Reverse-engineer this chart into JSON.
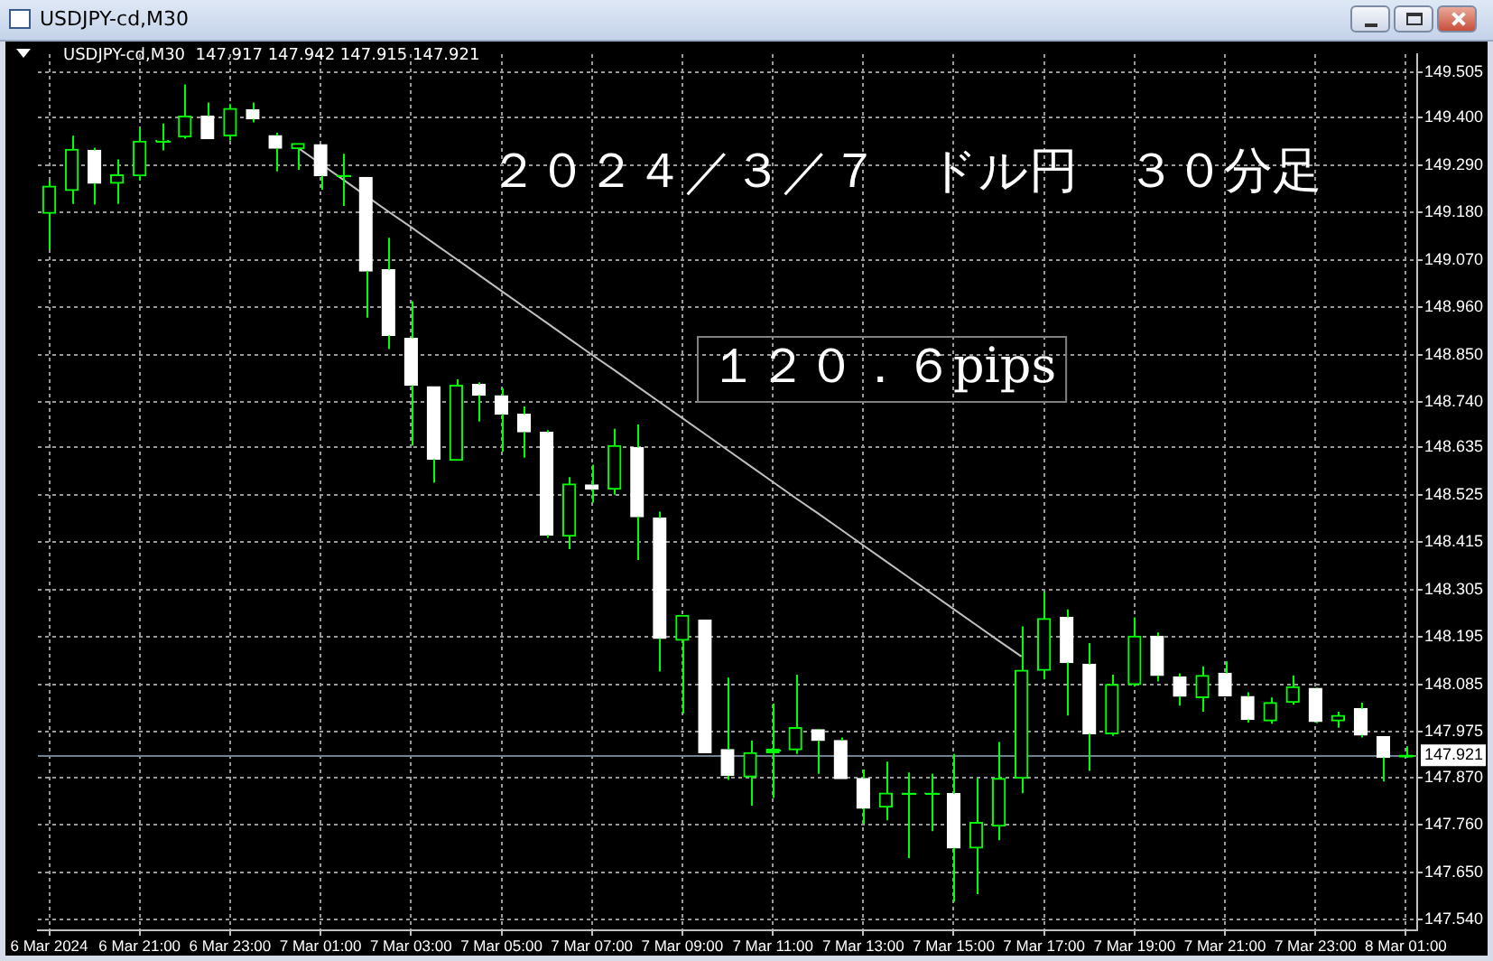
{
  "chart_data": {
    "type": "candlestick",
    "title": "USDJPY-cd,M30",
    "subtitle": "USDJPY-cd,M30  147.917 147.942 147.915 147.921",
    "colors": [
      "#00ff00",
      "#00ff00",
      "#ffffff",
      "#00ff00",
      "#00ff00",
      "#00ff00",
      "#00ff00",
      "#ffffff",
      "#00ff00",
      "#ffffff",
      "#ffffff",
      "#00ff00",
      "#ffffff",
      "#00ff00",
      "#ffffff",
      "#ffffff",
      "#ffffff",
      "#ffffff",
      "#00ff00",
      "#ffffff",
      "#ffffff",
      "#ffffff",
      "#ffffff",
      "#00ff00",
      "#ffffff",
      "#00ff00",
      "#ffffff",
      "#ffffff",
      "#00ff00",
      "#ffffff",
      "#ffffff",
      "#00ff00",
      "#00ff00",
      "#00ff00",
      "#ffffff",
      "#ffffff",
      "#ffffff",
      "#00ff00",
      "#00ff00",
      "#00ff00",
      "#ffffff",
      "#00ff00",
      "#00ff00",
      "#00ff00",
      "#00ff00",
      "#ffffff",
      "#ffffff",
      "#00ff00",
      "#00ff00",
      "#ffffff",
      "#ffffff",
      "#00ff00",
      "#ffffff",
      "#ffffff",
      "#00ff00",
      "#00ff00",
      "#ffffff",
      "#00ff00",
      "#ffffff",
      "#ffffff",
      "#00ff00"
    ],
    "categories": [
      "6 Mar 2024",
      null,
      null,
      null,
      "6 Mar 21:00",
      null,
      null,
      null,
      "6 Mar 23:00",
      null,
      null,
      null,
      "7 Mar 01:00",
      null,
      null,
      null,
      "7 Mar 03:00",
      null,
      null,
      null,
      "7 Mar 05:00",
      null,
      null,
      null,
      "7 Mar 07:00",
      null,
      null,
      null,
      "7 Mar 09:00",
      null,
      null,
      null,
      "7 Mar 11:00",
      null,
      null,
      null,
      "7 Mar 13:00",
      null,
      null,
      null,
      "7 Mar 15:00",
      null,
      null,
      null,
      "7 Mar 17:00",
      null,
      null,
      null,
      "7 Mar 19:00",
      null,
      null,
      null,
      "7 Mar 21:00",
      null,
      null,
      null,
      "7 Mar 23:00",
      null,
      null,
      null,
      "8 Mar 01:00"
    ],
    "ohlc": [
      [
        149.178,
        149.254,
        149.094,
        149.241
      ],
      [
        149.231,
        149.358,
        149.2,
        149.326
      ],
      [
        149.324,
        149.33,
        149.198,
        149.248
      ],
      [
        149.248,
        149.303,
        149.2,
        149.267
      ],
      [
        149.265,
        149.376,
        149.254,
        149.345
      ],
      [
        149.345,
        149.386,
        149.324,
        149.347
      ],
      [
        149.355,
        149.477,
        149.351,
        149.403
      ],
      [
        149.403,
        149.435,
        149.351,
        149.351
      ],
      [
        149.358,
        149.431,
        149.347,
        149.421
      ],
      [
        149.418,
        149.435,
        149.389,
        149.397
      ],
      [
        149.358,
        149.365,
        149.275,
        149.329
      ],
      [
        149.328,
        149.34,
        149.279,
        149.34
      ],
      [
        149.337,
        149.337,
        149.233,
        149.265
      ],
      [
        149.265,
        149.316,
        149.195,
        149.266
      ],
      [
        149.261,
        149.261,
        148.936,
        149.044
      ],
      [
        149.047,
        149.121,
        148.863,
        148.895
      ],
      [
        148.888,
        148.974,
        148.639,
        148.779
      ],
      [
        148.776,
        148.776,
        148.553,
        148.608
      ],
      [
        148.605,
        148.793,
        148.605,
        148.779
      ],
      [
        148.781,
        148.786,
        148.695,
        148.756
      ],
      [
        148.755,
        148.772,
        148.625,
        148.712
      ],
      [
        148.712,
        148.73,
        148.611,
        148.671
      ],
      [
        148.67,
        148.675,
        148.425,
        148.432
      ],
      [
        148.429,
        148.566,
        148.399,
        148.55
      ],
      [
        148.548,
        148.595,
        148.507,
        148.538
      ],
      [
        148.538,
        148.678,
        148.525,
        148.639
      ],
      [
        148.635,
        148.688,
        148.374,
        148.474
      ],
      [
        148.471,
        148.486,
        148.115,
        148.192
      ],
      [
        148.188,
        148.245,
        148.018,
        148.245
      ],
      [
        148.234,
        148.234,
        147.927,
        147.927
      ],
      [
        147.934,
        148.101,
        147.864,
        147.874
      ],
      [
        147.871,
        147.955,
        147.804,
        147.927
      ],
      [
        147.927,
        148.041,
        147.822,
        147.935
      ],
      [
        147.934,
        148.108,
        147.924,
        147.985
      ],
      [
        147.98,
        147.982,
        147.878,
        147.955
      ],
      [
        147.955,
        147.962,
        147.867,
        147.867
      ],
      [
        147.867,
        147.888,
        147.762,
        147.798
      ],
      [
        147.801,
        147.906,
        147.77,
        147.833
      ],
      [
        147.832,
        147.881,
        147.682,
        147.833
      ],
      [
        147.832,
        147.878,
        147.745,
        147.833
      ],
      [
        147.832,
        147.924,
        147.581,
        147.706
      ],
      [
        147.706,
        147.867,
        147.599,
        147.765
      ],
      [
        147.757,
        147.952,
        147.724,
        147.867
      ],
      [
        147.868,
        148.22,
        147.833,
        148.118
      ],
      [
        148.118,
        148.3,
        148.097,
        148.238
      ],
      [
        148.241,
        148.259,
        148.013,
        148.136
      ],
      [
        148.132,
        148.181,
        147.885,
        147.971
      ],
      [
        147.971,
        148.108,
        147.966,
        148.085
      ],
      [
        148.085,
        148.241,
        148.08,
        148.197
      ],
      [
        148.197,
        148.206,
        148.092,
        148.106
      ],
      [
        148.103,
        148.111,
        148.036,
        148.058
      ],
      [
        148.055,
        148.127,
        148.022,
        148.106
      ],
      [
        148.111,
        148.139,
        148.059,
        148.059
      ],
      [
        148.057,
        148.067,
        147.997,
        148.004
      ],
      [
        148.001,
        148.055,
        147.994,
        148.043
      ],
      [
        148.044,
        148.106,
        148.038,
        148.08
      ],
      [
        148.076,
        148.078,
        147.995,
        147.999
      ],
      [
        148.001,
        148.022,
        147.985,
        148.013
      ],
      [
        148.029,
        148.043,
        147.962,
        147.968
      ],
      [
        147.964,
        147.964,
        147.86,
        147.916
      ],
      [
        147.917,
        147.942,
        147.915,
        147.921
      ]
    ],
    "series": [
      {
        "type": "line",
        "color": "#c0c0c0",
        "values": [
          null,
          null,
          null,
          null,
          null,
          null,
          null,
          null,
          null,
          null,
          null,
          149.33,
          149.293,
          149.256,
          149.219,
          149.182,
          149.146,
          149.109,
          149.072,
          149.035,
          148.998,
          148.961,
          148.924,
          148.887,
          148.85,
          148.814,
          148.777,
          148.74,
          148.703,
          148.666,
          148.629,
          148.592,
          148.555,
          148.518,
          148.482,
          148.445,
          148.408,
          148.371,
          148.334,
          148.297,
          148.26,
          148.223,
          148.186,
          148.15,
          null,
          null,
          null,
          null,
          null,
          null,
          null,
          null,
          null,
          null,
          null,
          null,
          null,
          null,
          null,
          null,
          null
        ]
      }
    ],
    "ylim": [
      147.515,
      149.547
    ],
    "yticks": [
      {
        "value": 147.54,
        "label": "147.540"
      },
      {
        "value": 147.65,
        "label": "147.650"
      },
      {
        "value": 147.76,
        "label": "147.760"
      },
      {
        "value": 147.87,
        "label": "147.870"
      },
      {
        "value": 147.975,
        "label": "147.975"
      },
      {
        "value": 148.085,
        "label": "148.085"
      },
      {
        "value": 148.195,
        "label": "148.195"
      },
      {
        "value": 148.305,
        "label": "148.305"
      },
      {
        "value": 148.415,
        "label": "148.415"
      },
      {
        "value": 148.525,
        "label": "148.525"
      },
      {
        "value": 148.635,
        "label": "148.635"
      },
      {
        "value": 148.74,
        "label": "148.740"
      },
      {
        "value": 148.85,
        "label": "148.850"
      },
      {
        "value": 148.96,
        "label": "148.960"
      },
      {
        "value": 149.07,
        "label": "149.070"
      },
      {
        "value": 149.18,
        "label": "149.180"
      },
      {
        "value": 149.29,
        "label": "149.290"
      },
      {
        "value": 149.4,
        "label": "149.400"
      },
      {
        "value": 149.505,
        "label": "149.505"
      }
    ],
    "grid": true,
    "ref_lines": [
      {
        "axis": "y",
        "value": 147.921,
        "label": "147.921",
        "color": "#708090"
      }
    ],
    "annotations": [
      "２０２４／３／７　ドル円　３０分足",
      "１２０．６pips"
    ]
  }
}
